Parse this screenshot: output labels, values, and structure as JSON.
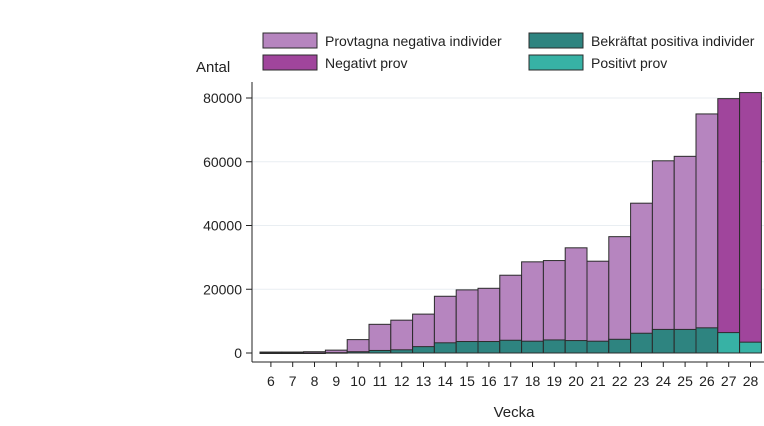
{
  "chart_data": {
    "type": "bar",
    "ylabel": "Antal",
    "xlabel": "Vecka",
    "ylim": [
      0,
      85000
    ],
    "yticks": [
      0,
      20000,
      40000,
      60000,
      80000
    ],
    "ytick_labels": [
      "0",
      "20000",
      "40000",
      "60000",
      "80000"
    ],
    "grid": "horizontal",
    "legend_position": "top",
    "categories": [
      "6",
      "7",
      "8",
      "9",
      "10",
      "11",
      "12",
      "13",
      "14",
      "15",
      "16",
      "17",
      "18",
      "19",
      "20",
      "21",
      "22",
      "23",
      "24",
      "25",
      "26",
      "27",
      "28"
    ],
    "series": [
      {
        "name": "Provtagna negativa individer",
        "color": "#b685bf",
        "stack": "background",
        "values": [
          300,
          300,
          400,
          900,
          4200,
          9000,
          10300,
          12200,
          17800,
          19800,
          20300,
          24400,
          28600,
          29000,
          33000,
          28800,
          36500,
          47000,
          60300,
          61700,
          75000,
          null,
          null
        ]
      },
      {
        "name": "Negativt prov",
        "color": "#a0459c",
        "stack": "background",
        "values": [
          null,
          null,
          null,
          null,
          null,
          null,
          null,
          null,
          null,
          null,
          null,
          null,
          null,
          null,
          null,
          null,
          null,
          null,
          null,
          null,
          null,
          79800,
          81700
        ]
      },
      {
        "name": "Bekräftat positiva individer",
        "color": "#2e8480",
        "stack": "foreground",
        "values": [
          0,
          0,
          0,
          100,
          400,
          800,
          1000,
          2000,
          3200,
          3600,
          3600,
          4000,
          3700,
          4100,
          3900,
          3700,
          4300,
          6200,
          7400,
          7400,
          7900,
          null,
          null
        ]
      },
      {
        "name": "Positivt prov",
        "color": "#37b2a5",
        "stack": "foreground",
        "values": [
          null,
          null,
          null,
          null,
          null,
          null,
          null,
          null,
          null,
          null,
          null,
          null,
          null,
          null,
          null,
          null,
          null,
          null,
          null,
          null,
          null,
          6400,
          3400
        ]
      }
    ]
  }
}
